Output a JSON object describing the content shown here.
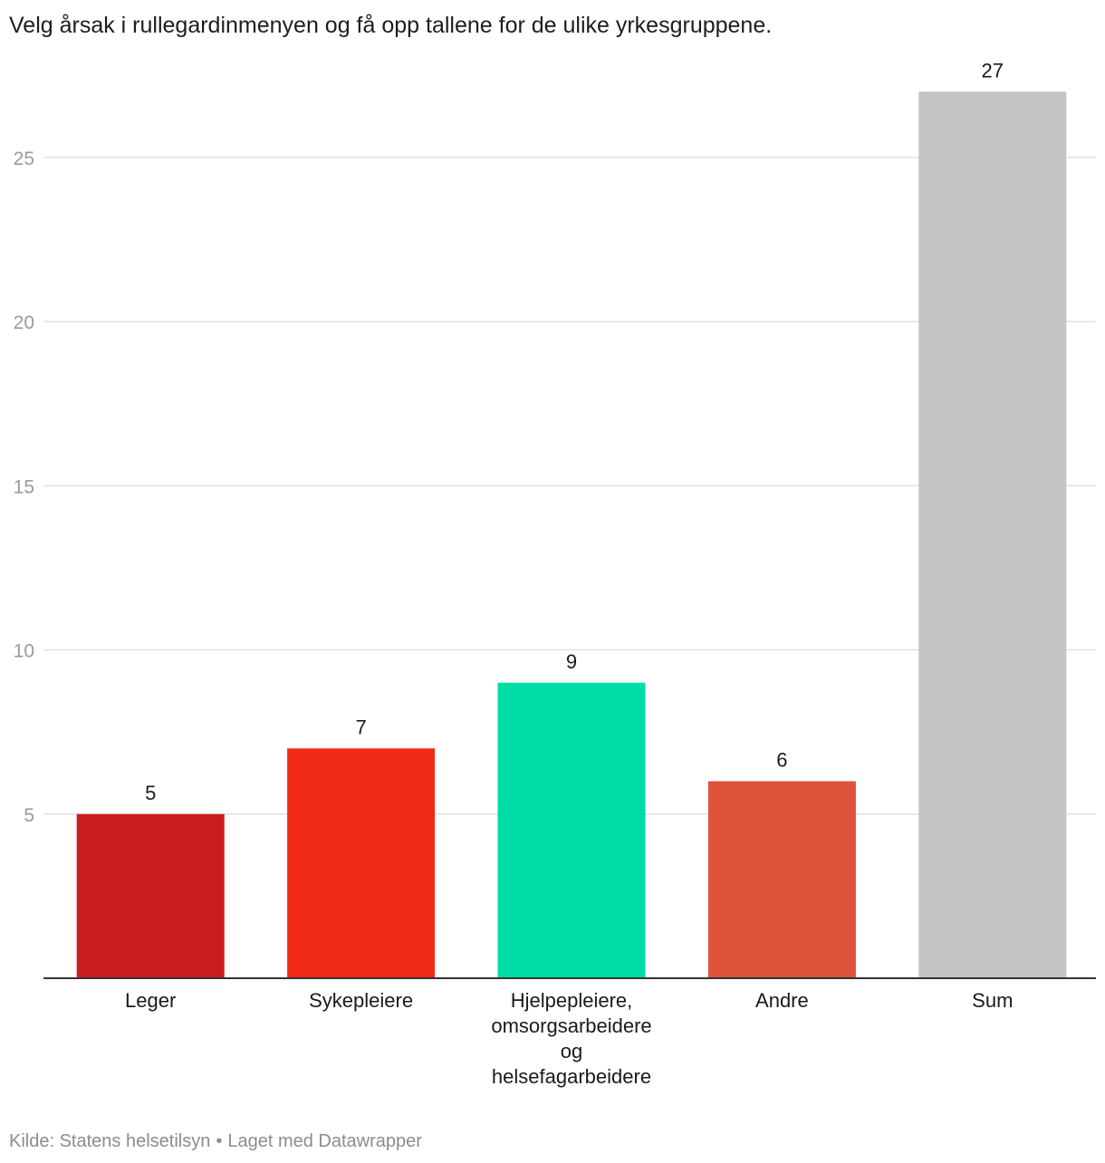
{
  "intro": "Velg årsak i rullegardinmenyen og få opp tallene for de ulike yrkesgruppene.",
  "footer": {
    "source": "Kilde: Statens helsetilsyn",
    "separator": "•",
    "credit": "Laget med Datawrapper"
  },
  "colors": {
    "gridline": "#e2e2e2",
    "baseline": "#333333",
    "tick_label": "#9a9a9a",
    "category_label": "#1a1a1a",
    "value_label": "#1a1a1a"
  },
  "chart_data": {
    "type": "bar",
    "title": "",
    "xlabel": "",
    "ylabel": "",
    "ylim": [
      0,
      27
    ],
    "yticks": [
      5,
      10,
      15,
      20,
      25
    ],
    "grid": true,
    "categories": [
      [
        "Leger"
      ],
      [
        "Sykepleiere"
      ],
      [
        "Hjelpepleiere,",
        "omsorgsarbeidere",
        "og",
        "helsefagarbeidere"
      ],
      [
        "Andre"
      ],
      [
        "Sum"
      ]
    ],
    "values": [
      5,
      7,
      9,
      6,
      27
    ],
    "bar_colors": [
      "#c71e1d",
      "#ef2a16",
      "#00dca6",
      "#de5339",
      "#c4c4c4"
    ]
  }
}
